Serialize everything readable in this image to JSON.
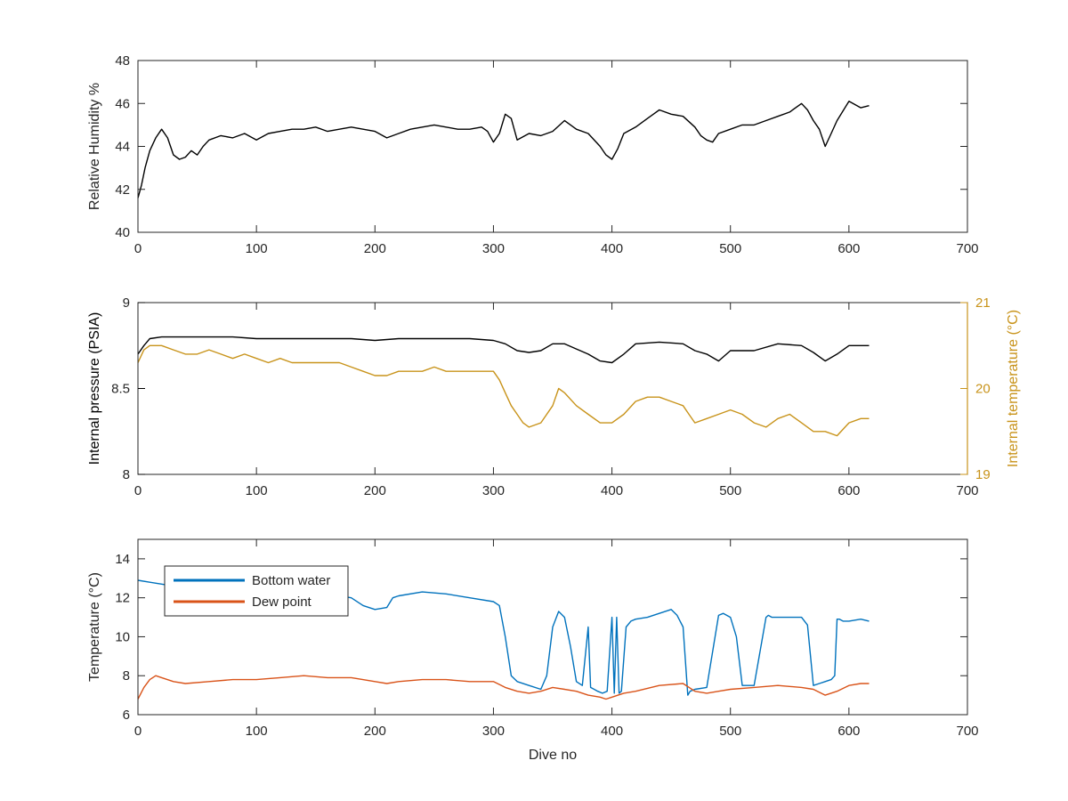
{
  "chart_data": [
    {
      "type": "line",
      "ylabel": "Relative Humidity %",
      "xlabel": "",
      "xlim": [
        0,
        700
      ],
      "ylim": [
        40,
        48
      ],
      "xticks": [
        "0",
        "100",
        "200",
        "300",
        "400",
        "500",
        "600",
        "700"
      ],
      "yticks": [
        "40",
        "42",
        "44",
        "46",
        "48"
      ],
      "grid": false,
      "series": [
        {
          "color": "#000000",
          "x": [
            0,
            3,
            6,
            10,
            15,
            20,
            25,
            30,
            35,
            40,
            45,
            50,
            55,
            60,
            70,
            80,
            90,
            100,
            110,
            120,
            130,
            140,
            150,
            160,
            170,
            180,
            190,
            200,
            210,
            220,
            230,
            240,
            250,
            260,
            270,
            280,
            290,
            295,
            300,
            305,
            310,
            315,
            320,
            330,
            340,
            350,
            360,
            370,
            380,
            390,
            395,
            400,
            405,
            410,
            420,
            430,
            440,
            450,
            460,
            470,
            475,
            480,
            485,
            490,
            500,
            510,
            520,
            530,
            540,
            550,
            560,
            565,
            570,
            575,
            580,
            585,
            590,
            600,
            610,
            617
          ],
          "y": [
            41.6,
            42.2,
            43.0,
            43.8,
            44.4,
            44.8,
            44.4,
            43.6,
            43.4,
            43.5,
            43.8,
            43.6,
            44.0,
            44.3,
            44.5,
            44.4,
            44.6,
            44.3,
            44.6,
            44.7,
            44.8,
            44.8,
            44.9,
            44.7,
            44.8,
            44.9,
            44.8,
            44.7,
            44.4,
            44.6,
            44.8,
            44.9,
            45.0,
            44.9,
            44.8,
            44.8,
            44.9,
            44.7,
            44.2,
            44.6,
            45.5,
            45.3,
            44.3,
            44.6,
            44.5,
            44.7,
            45.2,
            44.8,
            44.6,
            44.0,
            43.6,
            43.4,
            43.9,
            44.6,
            44.9,
            45.3,
            45.7,
            45.5,
            45.4,
            44.9,
            44.5,
            44.3,
            44.2,
            44.6,
            44.8,
            45.0,
            45.0,
            45.2,
            45.4,
            45.6,
            46.0,
            45.7,
            45.2,
            44.8,
            44.0,
            44.6,
            45.2,
            46.1,
            45.8,
            45.9
          ]
        }
      ]
    },
    {
      "type": "line",
      "ylabel": "Internal pressure (PSIA)",
      "ylabel_right": "Internal temperature (°C)",
      "xlabel": "",
      "xlim": [
        0,
        700
      ],
      "ylim": [
        8,
        9
      ],
      "ylim_right": [
        19,
        21
      ],
      "xticks": [
        "0",
        "100",
        "200",
        "300",
        "400",
        "500",
        "600",
        "700"
      ],
      "yticks": [
        "8",
        "8.5",
        "9"
      ],
      "yticks_right": [
        "19",
        "20",
        "21"
      ],
      "grid": false,
      "series": [
        {
          "axis": "left",
          "color": "#000000",
          "x": [
            0,
            5,
            10,
            20,
            40,
            60,
            80,
            100,
            120,
            140,
            160,
            180,
            200,
            220,
            240,
            260,
            280,
            300,
            310,
            320,
            330,
            340,
            350,
            360,
            370,
            380,
            390,
            400,
            410,
            420,
            440,
            460,
            470,
            480,
            490,
            500,
            510,
            520,
            540,
            560,
            570,
            580,
            590,
            600,
            617
          ],
          "y": [
            8.7,
            8.75,
            8.79,
            8.8,
            8.8,
            8.8,
            8.8,
            8.79,
            8.79,
            8.79,
            8.79,
            8.79,
            8.78,
            8.79,
            8.79,
            8.79,
            8.79,
            8.78,
            8.76,
            8.72,
            8.71,
            8.72,
            8.76,
            8.76,
            8.73,
            8.7,
            8.66,
            8.65,
            8.7,
            8.76,
            8.77,
            8.76,
            8.72,
            8.7,
            8.66,
            8.72,
            8.72,
            8.72,
            8.76,
            8.75,
            8.71,
            8.66,
            8.7,
            8.75,
            8.75
          ]
        },
        {
          "axis": "right",
          "color": "#C8931A",
          "x": [
            0,
            5,
            10,
            20,
            30,
            40,
            50,
            60,
            70,
            80,
            90,
            100,
            110,
            120,
            130,
            140,
            150,
            160,
            170,
            180,
            190,
            200,
            210,
            220,
            230,
            240,
            250,
            260,
            270,
            280,
            290,
            300,
            305,
            310,
            315,
            320,
            325,
            330,
            340,
            350,
            355,
            360,
            370,
            380,
            390,
            400,
            410,
            420,
            430,
            440,
            450,
            460,
            465,
            470,
            480,
            490,
            500,
            510,
            520,
            530,
            540,
            550,
            560,
            570,
            580,
            590,
            600,
            610,
            617
          ],
          "y": [
            20.3,
            20.45,
            20.5,
            20.5,
            20.45,
            20.4,
            20.4,
            20.45,
            20.4,
            20.35,
            20.4,
            20.35,
            20.3,
            20.35,
            20.3,
            20.3,
            20.3,
            20.3,
            20.3,
            20.25,
            20.2,
            20.15,
            20.15,
            20.2,
            20.2,
            20.2,
            20.25,
            20.2,
            20.2,
            20.2,
            20.2,
            20.2,
            20.1,
            19.95,
            19.8,
            19.7,
            19.6,
            19.55,
            19.6,
            19.8,
            20.0,
            19.95,
            19.8,
            19.7,
            19.6,
            19.6,
            19.7,
            19.85,
            19.9,
            19.9,
            19.85,
            19.8,
            19.7,
            19.6,
            19.65,
            19.7,
            19.75,
            19.7,
            19.6,
            19.55,
            19.65,
            19.7,
            19.6,
            19.5,
            19.5,
            19.45,
            19.6,
            19.65,
            19.65
          ]
        }
      ]
    },
    {
      "type": "line",
      "ylabel": "Temperature (°C)",
      "xlabel": "Dive no",
      "xlim": [
        0,
        700
      ],
      "ylim": [
        6,
        15
      ],
      "xticks": [
        "0",
        "100",
        "200",
        "300",
        "400",
        "500",
        "600",
        "700"
      ],
      "yticks": [
        "6",
        "8",
        "10",
        "12",
        "14"
      ],
      "grid": false,
      "legend_position": "top-left",
      "series": [
        {
          "name": "Bottom water",
          "color": "#0072BD",
          "x": [
            0,
            10,
            20,
            30,
            40,
            60,
            80,
            100,
            120,
            140,
            160,
            180,
            190,
            200,
            210,
            215,
            220,
            240,
            260,
            280,
            300,
            305,
            310,
            315,
            320,
            330,
            340,
            345,
            350,
            355,
            360,
            365,
            370,
            375,
            380,
            382,
            385,
            388,
            392,
            396,
            400,
            402,
            404,
            406,
            408,
            412,
            416,
            420,
            430,
            440,
            450,
            455,
            460,
            464,
            466,
            470,
            480,
            490,
            494,
            500,
            505,
            510,
            520,
            530,
            532,
            535,
            540,
            560,
            565,
            570,
            575,
            580,
            585,
            588,
            590,
            592,
            595,
            600,
            610,
            617
          ],
          "y": [
            12.9,
            12.8,
            12.7,
            12.6,
            12.5,
            12.4,
            12.5,
            12.4,
            12.4,
            12.3,
            12.2,
            12.0,
            11.6,
            11.4,
            11.5,
            12.0,
            12.1,
            12.3,
            12.2,
            12.0,
            11.8,
            11.6,
            10.0,
            8.0,
            7.7,
            7.5,
            7.3,
            8.0,
            10.5,
            11.3,
            11.0,
            9.5,
            7.7,
            7.5,
            10.5,
            7.4,
            7.3,
            7.2,
            7.1,
            7.2,
            11.0,
            7.1,
            11.0,
            7.1,
            7.2,
            10.5,
            10.8,
            10.9,
            11.0,
            11.2,
            11.4,
            11.1,
            10.5,
            7.0,
            7.2,
            7.3,
            7.4,
            11.1,
            11.2,
            11.0,
            10.0,
            7.5,
            7.5,
            11.0,
            11.1,
            11.0,
            11.0,
            11.0,
            10.6,
            7.5,
            7.6,
            7.7,
            7.8,
            8.0,
            10.9,
            10.9,
            10.8,
            10.8,
            10.9,
            10.8
          ]
        },
        {
          "name": "Dew point",
          "color": "#D95319",
          "x": [
            0,
            5,
            10,
            15,
            20,
            30,
            40,
            60,
            80,
            100,
            120,
            140,
            160,
            180,
            200,
            210,
            220,
            240,
            260,
            280,
            300,
            310,
            320,
            330,
            340,
            350,
            360,
            370,
            380,
            390,
            395,
            400,
            410,
            420,
            440,
            460,
            470,
            480,
            490,
            500,
            520,
            540,
            560,
            570,
            580,
            590,
            600,
            610,
            617
          ],
          "y": [
            6.8,
            7.4,
            7.8,
            8.0,
            7.9,
            7.7,
            7.6,
            7.7,
            7.8,
            7.8,
            7.9,
            8.0,
            7.9,
            7.9,
            7.7,
            7.6,
            7.7,
            7.8,
            7.8,
            7.7,
            7.7,
            7.4,
            7.2,
            7.1,
            7.2,
            7.4,
            7.3,
            7.2,
            7.0,
            6.9,
            6.8,
            6.9,
            7.1,
            7.2,
            7.5,
            7.6,
            7.2,
            7.1,
            7.2,
            7.3,
            7.4,
            7.5,
            7.4,
            7.3,
            7.0,
            7.2,
            7.5,
            7.6,
            7.6
          ]
        }
      ]
    }
  ]
}
